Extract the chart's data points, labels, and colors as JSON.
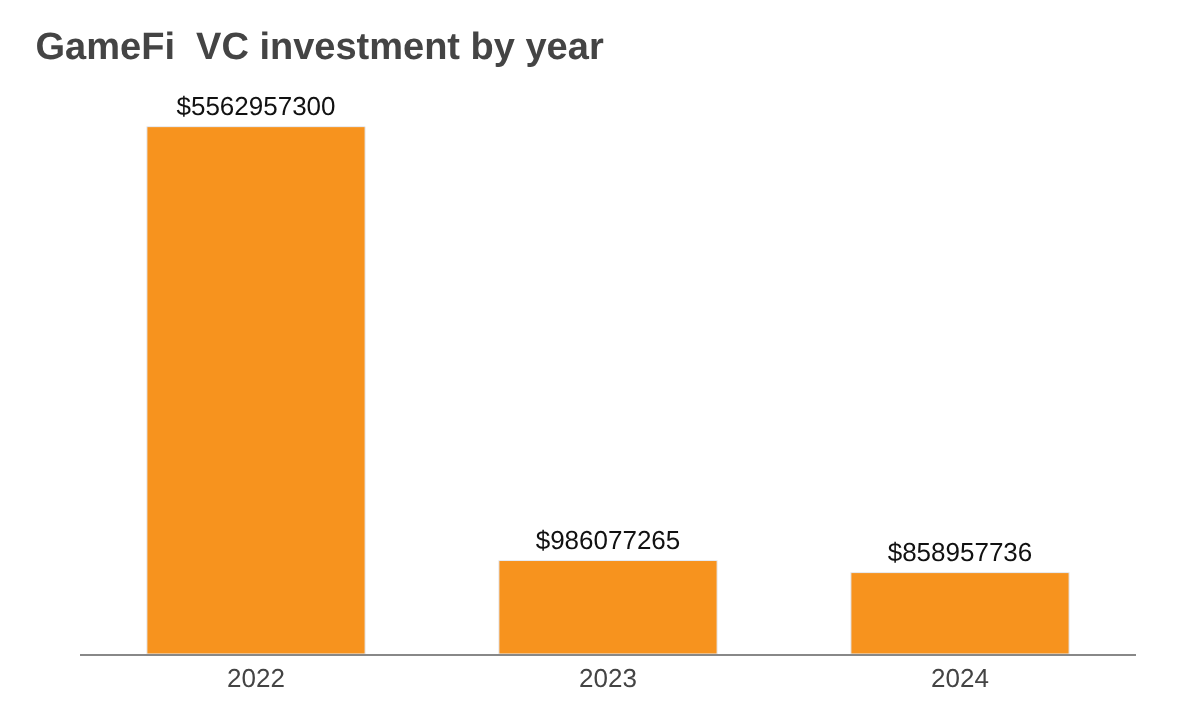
{
  "chart_data": {
    "type": "bar",
    "title": "GameFi  VC investment by year",
    "categories": [
      "2022",
      "2023",
      "2024"
    ],
    "values": [
      5562957300,
      986077265,
      858957736
    ],
    "value_labels": [
      "$5562957300",
      "$986077265",
      "$858957736"
    ],
    "color": "#f7931e"
  }
}
